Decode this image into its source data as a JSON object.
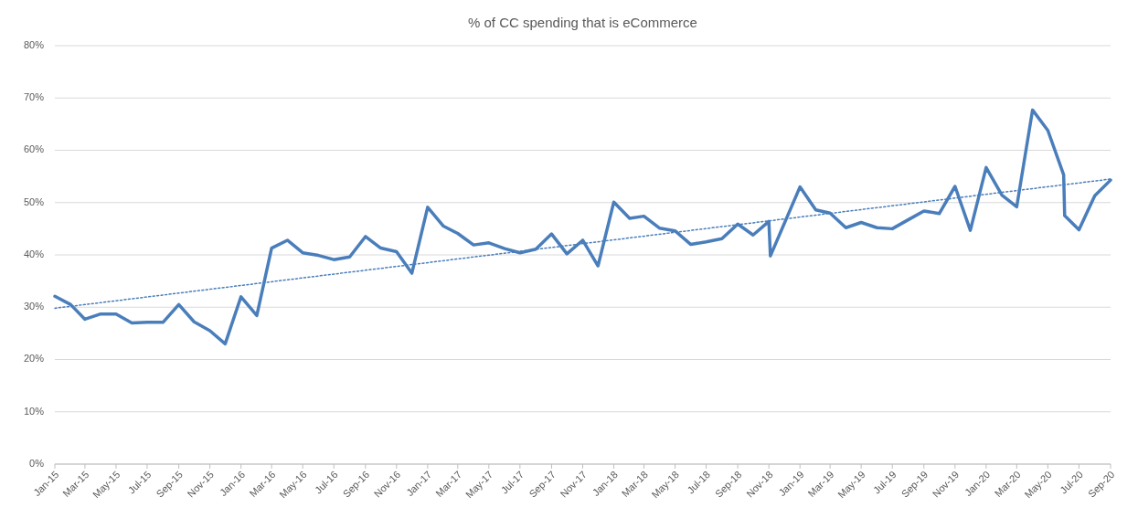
{
  "chart_data": {
    "type": "line",
    "title": "% of CC spending that is eCommerce",
    "series": [
      {
        "color": "#4a7ebb",
        "line_style": "solid",
        "x": [
          "2015-01-01",
          "2015-02-01",
          "2015-03-01",
          "2015-04-01",
          "2015-05-01",
          "2015-06-01",
          "2015-07-01",
          "2015-08-01",
          "2015-09-01",
          "2015-10-01",
          "2015-11-01",
          "2015-12-01",
          "2016-01-01",
          "2016-02-01",
          "2016-03-01",
          "2016-04-01",
          "2016-05-01",
          "2016-06-01",
          "2016-07-01",
          "2016-08-01",
          "2016-09-01",
          "2016-10-01",
          "2016-11-01",
          "2016-12-01",
          "2017-01-01",
          "2017-02-01",
          "2017-03-01",
          "2017-04-01",
          "2017-05-01",
          "2017-06-01",
          "2017-07-01",
          "2017-08-01",
          "2017-09-01",
          "2017-10-01",
          "2017-11-01",
          "2017-12-01",
          "2018-01-01",
          "2018-02-01",
          "2018-03-01",
          "2018-04-01",
          "2018-05-01",
          "2018-06-01",
          "2018-07-01",
          "2018-08-01",
          "2018-09-01",
          "2018-10-01",
          "2018-11-01",
          "2018-11-04",
          "2019-01-01",
          "2019-02-01",
          "2019-03-01",
          "2019-04-01",
          "2019-05-01",
          "2019-06-01",
          "2019-07-01",
          "2019-08-01",
          "2019-09-01",
          "2019-10-01",
          "2019-11-01",
          "2019-12-01",
          "2020-01-01",
          "2020-02-01",
          "2020-03-01",
          "2020-04-01",
          "2020-05-01",
          "2020-06-01",
          "2020-06-03",
          "2020-07-01",
          "2020-08-01",
          "2020-09-01"
        ],
        "values": [
          32.1,
          30.5,
          27.7,
          28.7,
          28.7,
          27.0,
          27.1,
          27.1,
          30.5,
          27.2,
          25.5,
          23.0,
          32.0,
          28.4,
          41.3,
          42.8,
          40.4,
          39.9,
          39.1,
          39.6,
          43.5,
          41.3,
          40.6,
          36.5,
          49.1,
          45.5,
          44.1,
          41.9,
          42.3,
          41.2,
          40.4,
          41.1,
          44.0,
          40.2,
          42.8,
          37.9,
          50.1,
          47.0,
          47.4,
          45.1,
          44.6,
          42.0,
          42.5,
          43.1,
          45.9,
          43.8,
          46.4,
          39.8,
          53.0,
          48.6,
          48.0,
          45.2,
          46.2,
          45.2,
          45.0,
          46.7,
          48.4,
          47.9,
          53.1,
          44.7,
          56.7,
          51.4,
          49.2,
          67.7,
          63.8,
          55.3,
          47.5,
          44.8,
          51.3,
          54.3
        ]
      },
      {
        "type": "line",
        "color": "#4a7ebb",
        "line_style": "dotted",
        "x": [
          "2015-01-01",
          "2020-09-01"
        ],
        "values": [
          29.8,
          54.5
        ]
      }
    ],
    "xlim": [
      "2015-01-01",
      "2020-09-01"
    ],
    "xticks": [
      {
        "value": "2015-01-01",
        "label": "Jan-15"
      },
      {
        "value": "2015-03-01",
        "label": "Mar-15"
      },
      {
        "value": "2015-05-01",
        "label": "May-15"
      },
      {
        "value": "2015-07-01",
        "label": "Jul-15"
      },
      {
        "value": "2015-09-01",
        "label": "Sep-15"
      },
      {
        "value": "2015-11-01",
        "label": "Nov-15"
      },
      {
        "value": "2016-01-01",
        "label": "Jan-16"
      },
      {
        "value": "2016-03-01",
        "label": "Mar-16"
      },
      {
        "value": "2016-05-01",
        "label": "May-16"
      },
      {
        "value": "2016-07-01",
        "label": "Jul-16"
      },
      {
        "value": "2016-09-01",
        "label": "Sep-16"
      },
      {
        "value": "2016-11-01",
        "label": "Nov-16"
      },
      {
        "value": "2017-01-01",
        "label": "Jan-17"
      },
      {
        "value": "2017-03-01",
        "label": "Mar-17"
      },
      {
        "value": "2017-05-01",
        "label": "May-17"
      },
      {
        "value": "2017-07-01",
        "label": "Jul-17"
      },
      {
        "value": "2017-09-01",
        "label": "Sep-17"
      },
      {
        "value": "2017-11-01",
        "label": "Nov-17"
      },
      {
        "value": "2018-01-01",
        "label": "Jan-18"
      },
      {
        "value": "2018-03-01",
        "label": "Mar-18"
      },
      {
        "value": "2018-05-01",
        "label": "May-18"
      },
      {
        "value": "2018-07-01",
        "label": "Jul-18"
      },
      {
        "value": "2018-09-01",
        "label": "Sep-18"
      },
      {
        "value": "2018-11-01",
        "label": "Nov-18"
      },
      {
        "value": "2019-01-01",
        "label": "Jan-19"
      },
      {
        "value": "2019-03-01",
        "label": "Mar-19"
      },
      {
        "value": "2019-05-01",
        "label": "May-19"
      },
      {
        "value": "2019-07-01",
        "label": "Jul-19"
      },
      {
        "value": "2019-09-01",
        "label": "Sep-19"
      },
      {
        "value": "2019-11-01",
        "label": "Nov-19"
      },
      {
        "value": "2020-01-01",
        "label": "Jan-20"
      },
      {
        "value": "2020-03-01",
        "label": "Mar-20"
      },
      {
        "value": "2020-05-01",
        "label": "May-20"
      },
      {
        "value": "2020-07-01",
        "label": "Jul-20"
      },
      {
        "value": "2020-09-01",
        "label": "Sep-20"
      }
    ],
    "ylim": [
      0,
      80
    ],
    "yticks": [
      {
        "value": 0,
        "label": "0%"
      },
      {
        "value": 10,
        "label": "10%"
      },
      {
        "value": 20,
        "label": "20%"
      },
      {
        "value": 30,
        "label": "30%"
      },
      {
        "value": 40,
        "label": "40%"
      },
      {
        "value": 50,
        "label": "50%"
      },
      {
        "value": 60,
        "label": "60%"
      },
      {
        "value": 70,
        "label": "70%"
      },
      {
        "value": 80,
        "label": "80%"
      }
    ],
    "grid": "y",
    "marker": "none"
  }
}
